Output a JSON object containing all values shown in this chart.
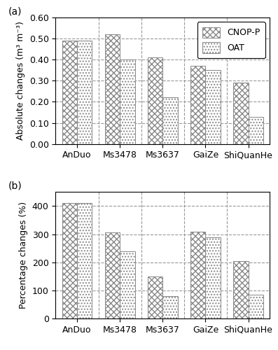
{
  "categories": [
    "AnDuo",
    "Ms3478",
    "Ms3637",
    "GaiZe",
    "ShiQuanHe"
  ],
  "abs_cnop": [
    0.49,
    0.52,
    0.41,
    0.37,
    0.29
  ],
  "abs_oat": [
    0.49,
    0.4,
    0.22,
    0.35,
    0.13
  ],
  "pct_cnop": [
    410,
    307,
    150,
    310,
    203
  ],
  "pct_oat": [
    410,
    240,
    80,
    290,
    85
  ],
  "ylabel_a": "Absolute changes (m³ m⁻³)",
  "ylabel_b": "Percentage changes (%)",
  "ylim_a": [
    0.0,
    0.6
  ],
  "ylim_b": [
    0,
    450
  ],
  "yticks_a": [
    0.0,
    0.1,
    0.2,
    0.3,
    0.4,
    0.5,
    0.6
  ],
  "yticks_b": [
    0,
    100,
    200,
    300,
    400
  ],
  "label_a": "(a)",
  "label_b": "(b)",
  "legend_cnop": "CNOP-P",
  "legend_oat": "OAT",
  "bar_width": 0.35,
  "cnop_hatch": "xxxx",
  "oat_hatch": "....",
  "bar_edgecolor": "#888888",
  "bar_facecolor": "white",
  "grid_color": "#999999",
  "font_size": 9
}
